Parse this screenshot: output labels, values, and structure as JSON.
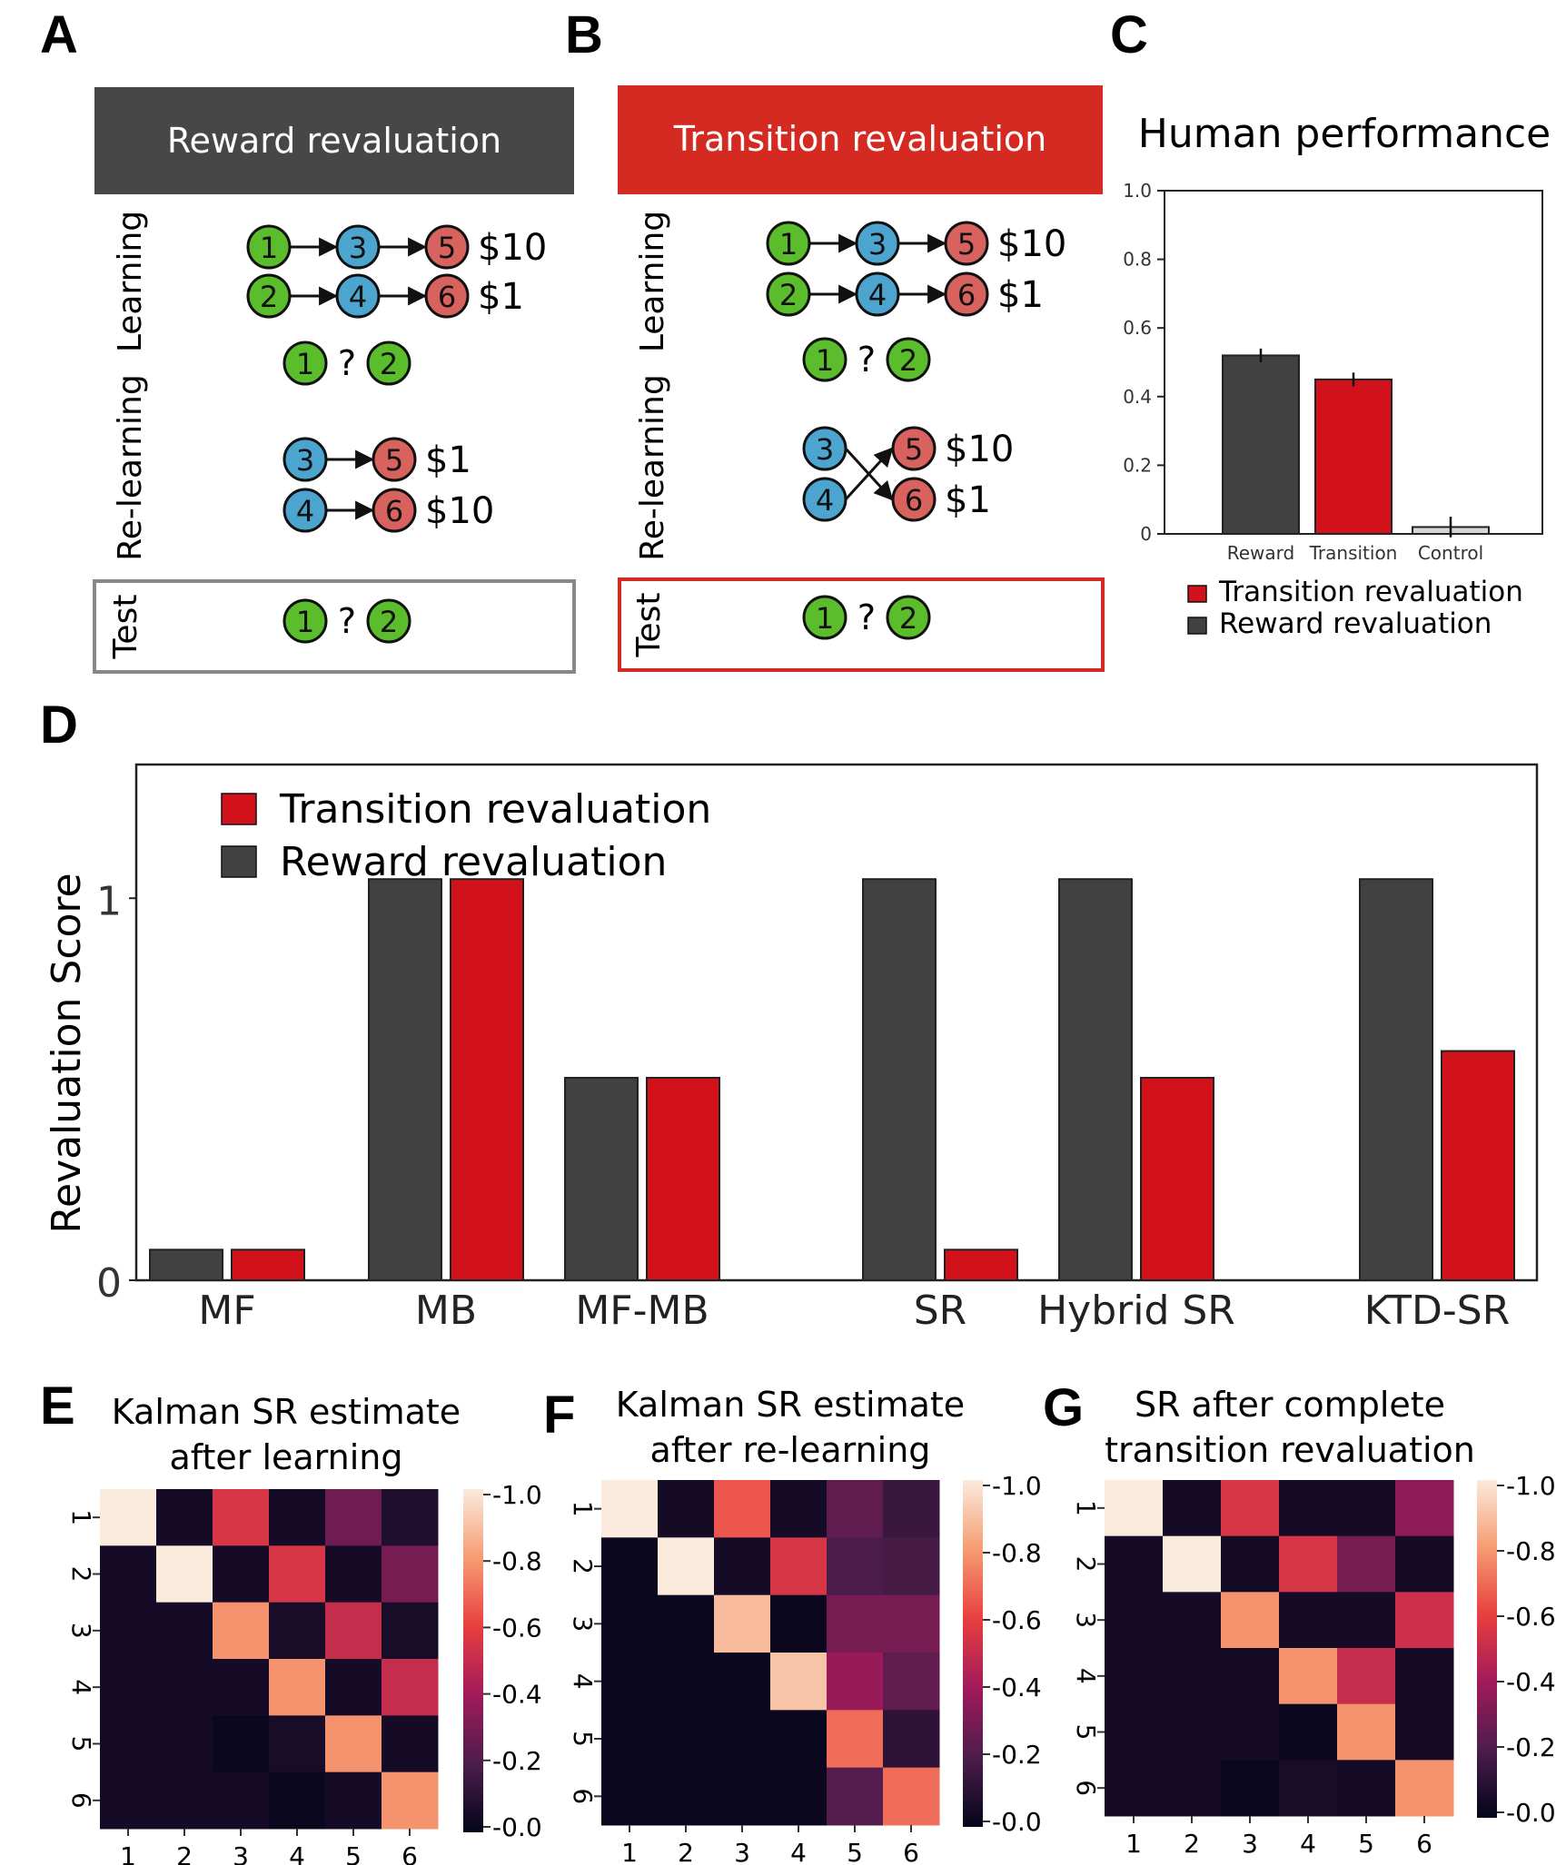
{
  "panels": {
    "A": {
      "letter": "A",
      "header": "Reward revaluation",
      "side_learning": "Learning",
      "side_relearning": "Re-learning",
      "side_test": "Test",
      "question": "?",
      "rewards": {
        "r5": "$10",
        "r6": "$1",
        "rr5": "$1",
        "rr6": "$10"
      }
    },
    "B": {
      "letter": "B",
      "header": "Transition revaluation",
      "side_learning": "Learning",
      "side_relearning": "Re-learning",
      "side_test": "Test",
      "question": "?",
      "rewards": {
        "r5": "$10",
        "r6": "$1",
        "rr5": "$10",
        "rr6": "$1"
      }
    },
    "C": {
      "letter": "C"
    },
    "D": {
      "letter": "D"
    },
    "E": {
      "letter": "E"
    },
    "F": {
      "letter": "F"
    },
    "G": {
      "letter": "G"
    }
  },
  "colors": {
    "dark": "#414141",
    "red": "#d2121b",
    "node_green": "#5bbd2b",
    "node_blue": "#4ca5cf",
    "node_red": "#d8625e",
    "header_dark": "#474747",
    "header_red": "#d42a22",
    "control": "#d6d6d6"
  },
  "chart_data": [
    {
      "id": "C",
      "type": "bar",
      "title": "Human performance",
      "categories": [
        "Reward",
        "Transition",
        "Control"
      ],
      "values": [
        0.52,
        0.45,
        0.02
      ],
      "errors": [
        0.02,
        0.02,
        0.03
      ],
      "bar_colors": [
        "dark",
        "red",
        "control"
      ],
      "ylim": [
        0,
        1.0
      ],
      "yticks": [
        "0",
        "0.2",
        "0.4",
        "0.6",
        "0.8",
        "1.0"
      ],
      "legend": [
        "Transition revaluation",
        "Reward revaluation"
      ],
      "legend_position": "bottom"
    },
    {
      "id": "D",
      "type": "bar",
      "ylabel": "Revaluation Score",
      "categories": [
        "MF",
        "MB",
        "MF-MB",
        "SR",
        "Hybrid SR",
        "KTD-SR"
      ],
      "series": [
        {
          "name": "Reward revaluation",
          "values": [
            0.08,
            1.05,
            0.53,
            1.05,
            1.05,
            1.05
          ]
        },
        {
          "name": "Transition revaluation",
          "values": [
            0.08,
            1.05,
            0.53,
            0.08,
            0.53,
            0.6
          ]
        }
      ],
      "ylim": [
        0,
        1.35
      ],
      "yticks": [
        "0",
        "1"
      ],
      "legend": [
        "Transition revaluation",
        "Reward revaluation"
      ],
      "legend_position": "top-left"
    },
    {
      "id": "E",
      "type": "heatmap",
      "title_lines": [
        "Kalman SR estimate",
        "after learning"
      ],
      "xticks": [
        "1",
        "2",
        "3",
        "4",
        "5",
        "6"
      ],
      "yticks": [
        "1",
        "2",
        "3",
        "4",
        "5",
        "6"
      ],
      "colorbar": [
        "1.0",
        "0.8",
        "0.6",
        "0.4",
        "0.2",
        "0.0"
      ],
      "matrix": [
        [
          1.0,
          0.05,
          0.55,
          0.05,
          0.28,
          0.08
        ],
        [
          0.05,
          1.0,
          0.05,
          0.55,
          0.05,
          0.3
        ],
        [
          0.05,
          0.05,
          0.78,
          0.06,
          0.5,
          0.06
        ],
        [
          0.05,
          0.05,
          0.05,
          0.78,
          0.05,
          0.5
        ],
        [
          0.05,
          0.05,
          0.02,
          0.06,
          0.78,
          0.05
        ],
        [
          0.05,
          0.05,
          0.05,
          0.02,
          0.05,
          0.78
        ]
      ]
    },
    {
      "id": "F",
      "type": "heatmap",
      "title_lines": [
        "Kalman SR estimate",
        "after re-learning"
      ],
      "xticks": [
        "1",
        "2",
        "3",
        "4",
        "5",
        "6"
      ],
      "yticks": [
        "1",
        "2",
        "3",
        "4",
        "5",
        "6"
      ],
      "colorbar": [
        "1.0",
        "0.8",
        "0.6",
        "0.4",
        "0.2",
        "0.0"
      ],
      "matrix": [
        [
          1.0,
          0.05,
          0.65,
          0.05,
          0.25,
          0.15
        ],
        [
          0.02,
          1.0,
          0.05,
          0.55,
          0.2,
          0.18
        ],
        [
          0.02,
          0.02,
          0.88,
          0.02,
          0.3,
          0.3
        ],
        [
          0.02,
          0.02,
          0.02,
          0.9,
          0.38,
          0.25
        ],
        [
          0.02,
          0.02,
          0.02,
          0.02,
          0.7,
          0.12
        ],
        [
          0.02,
          0.02,
          0.02,
          0.02,
          0.22,
          0.7
        ]
      ]
    },
    {
      "id": "G",
      "type": "heatmap",
      "title_lines": [
        "SR after complete",
        "transition revaluation"
      ],
      "xticks": [
        "1",
        "2",
        "3",
        "4",
        "5",
        "6"
      ],
      "yticks": [
        "1",
        "2",
        "3",
        "4",
        "5",
        "6"
      ],
      "colorbar": [
        "1.0",
        "0.8",
        "0.6",
        "0.4",
        "0.2",
        "0.0"
      ],
      "matrix": [
        [
          1.0,
          0.05,
          0.55,
          0.05,
          0.05,
          0.35
        ],
        [
          0.05,
          1.0,
          0.05,
          0.55,
          0.3,
          0.05
        ],
        [
          0.05,
          0.05,
          0.78,
          0.05,
          0.05,
          0.52
        ],
        [
          0.05,
          0.05,
          0.05,
          0.78,
          0.5,
          0.05
        ],
        [
          0.05,
          0.05,
          0.05,
          0.02,
          0.78,
          0.05
        ],
        [
          0.05,
          0.05,
          0.02,
          0.06,
          0.05,
          0.78
        ]
      ]
    }
  ]
}
